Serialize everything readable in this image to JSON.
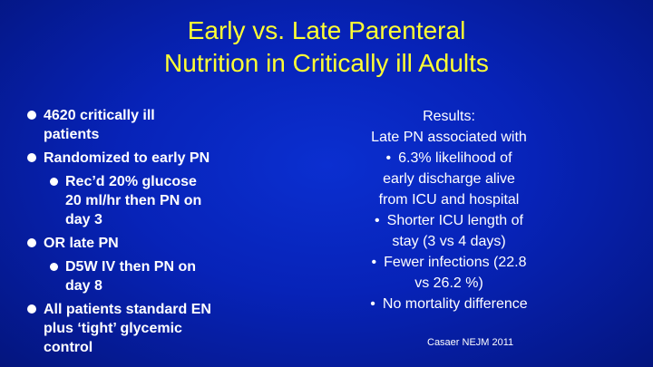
{
  "title": {
    "line1": "Early vs. Late Parenteral",
    "line2": "Nutrition in Critically ill Adults"
  },
  "left": {
    "items": [
      {
        "text_lines": [
          "4620 critically ill",
          "patients"
        ]
      },
      {
        "text_lines": [
          "Randomized to early PN"
        ]
      },
      {
        "text_lines": [
          "Rec’d 20% glucose",
          "20 ml/hr then PN on",
          "day 3"
        ]
      },
      {
        "text_lines": [
          "OR late PN"
        ]
      },
      {
        "text_lines": [
          "D5W IV then PN on",
          "day 8"
        ]
      },
      {
        "text_lines": [
          "All patients standard EN",
          "plus ‘tight’ glycemic",
          "control"
        ]
      }
    ]
  },
  "right": {
    "heading": "Results:",
    "intro": "Late PN associated with",
    "bullets": [
      {
        "lines": [
          "6.3% likelihood of",
          "early discharge alive",
          "from ICU and hospital"
        ]
      },
      {
        "lines": [
          "Shorter ICU length of",
          "stay (3 vs 4 days)"
        ]
      },
      {
        "lines": [
          "Fewer infections (22.8",
          "vs 26.2 %)"
        ]
      },
      {
        "lines": [
          "No mortality difference"
        ]
      }
    ],
    "bullet_glyph": "•"
  },
  "citation": "Casaer NEJM 2011",
  "colors": {
    "background": "#0723b8",
    "title": "#ffff33",
    "text": "#ffffff"
  }
}
